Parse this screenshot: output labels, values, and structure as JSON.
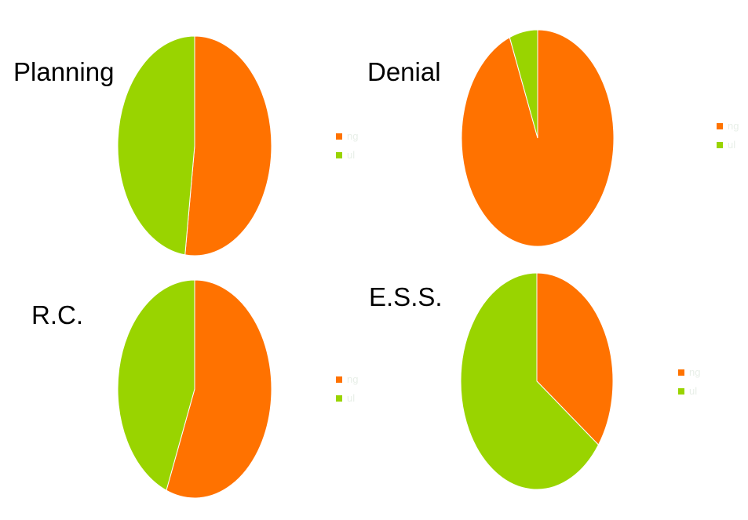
{
  "colors": {
    "orange": "#ff7200",
    "green": "#99d400",
    "legend_text": "#e8efe8",
    "title": "#000000"
  },
  "chart_data": [
    {
      "type": "pie",
      "title": "Planning",
      "slices": [
        {
          "label": "ng",
          "value": 52,
          "color": "#ff7200"
        },
        {
          "label": "ul",
          "value": 48,
          "color": "#99d400"
        }
      ],
      "legend": "right"
    },
    {
      "type": "pie",
      "title": "Denial",
      "slices": [
        {
          "label": "ng",
          "value": 94,
          "color": "#ff7200"
        },
        {
          "label": "ul",
          "value": 6,
          "color": "#99d400"
        }
      ],
      "legend": "right"
    },
    {
      "type": "pie",
      "title": "R.C.",
      "slices": [
        {
          "label": "ng",
          "value": 56,
          "color": "#ff7200"
        },
        {
          "label": "ul",
          "value": 44,
          "color": "#99d400"
        }
      ],
      "legend": "right"
    },
    {
      "type": "pie",
      "title": "E.S.S.",
      "slices": [
        {
          "label": "ng",
          "value": 35,
          "color": "#ff7200"
        },
        {
          "label": "ul",
          "value": 65,
          "color": "#99d400"
        }
      ],
      "legend": "right"
    }
  ]
}
